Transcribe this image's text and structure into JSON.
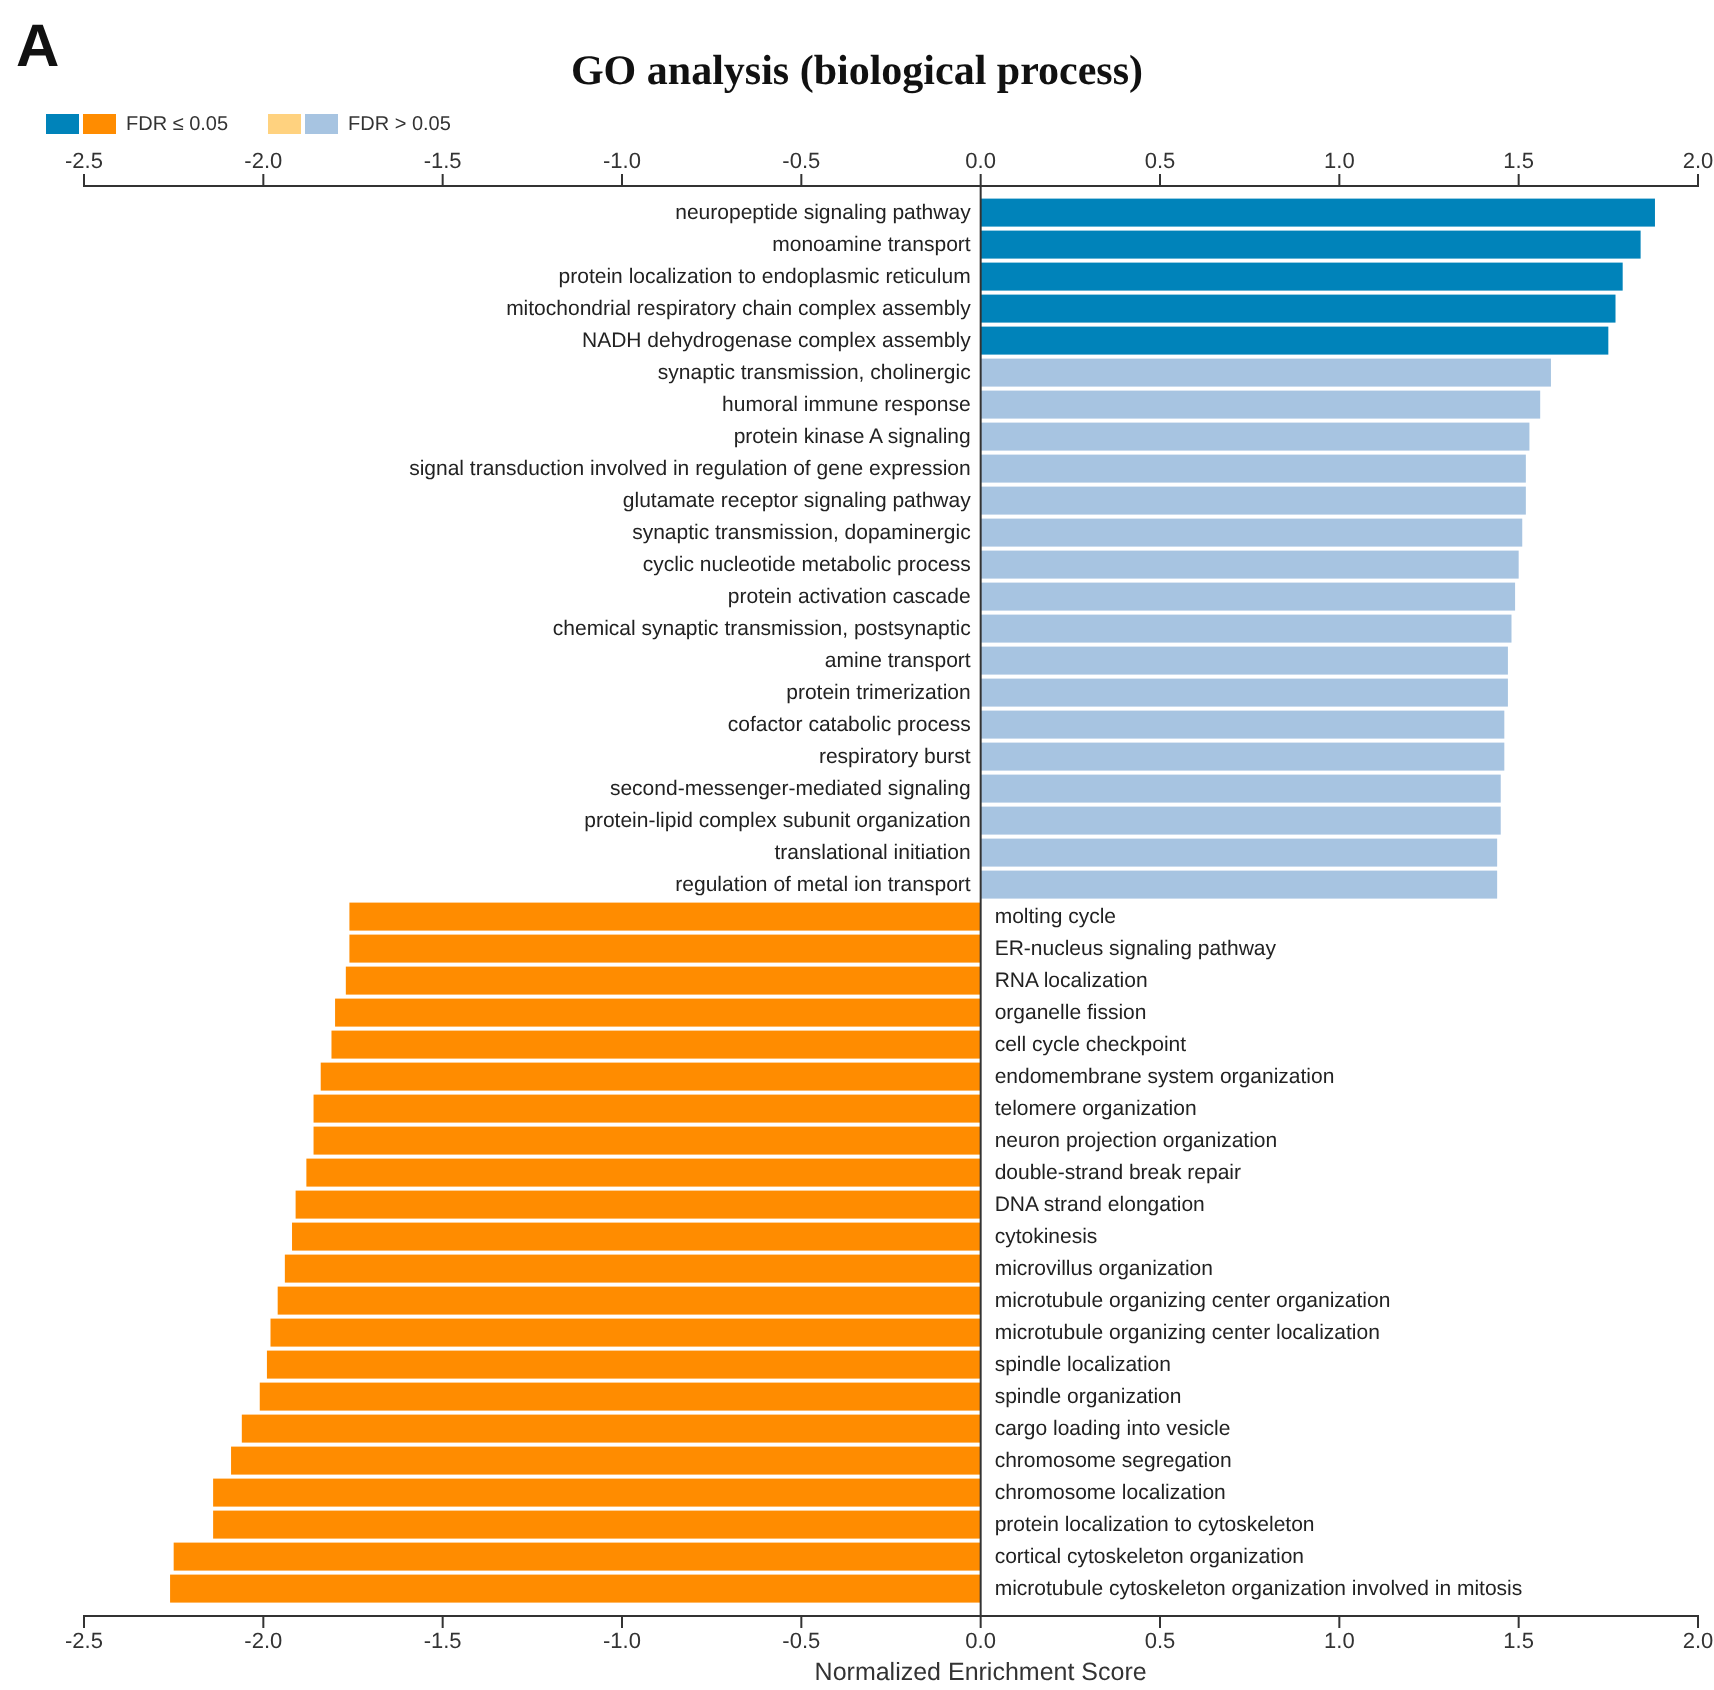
{
  "chart_data": {
    "type": "bar",
    "title": "GO analysis (biological process)",
    "xlabel": "Normalized Enrichment Score",
    "annotations": [
      "A"
    ],
    "orientation": "horizontal",
    "stacked": true,
    "legend": "top left",
    "categories": [
      "neuropeptide signaling pathway",
      "monoamine transport",
      "protein localization to endoplasmic reticulum",
      "mitochondrial respiratory chain complex assembly",
      "NADH dehydrogenase complex assembly",
      "synaptic transmission, cholinergic",
      "humoral immune response",
      "protein kinase A signaling",
      "signal transduction involved in regulation of gene expression",
      "glutamate receptor signaling pathway",
      "synaptic transmission, dopaminergic",
      "cyclic nucleotide metabolic process",
      "protein activation cascade",
      "chemical synaptic transmission, postsynaptic",
      "amine transport",
      "protein trimerization",
      "cofactor catabolic process",
      "respiratory burst",
      "second-messenger-mediated signaling",
      "protein-lipid complex subunit organization",
      "translational initiation",
      "regulation of metal ion transport",
      "molting cycle",
      "ER-nucleus signaling pathway",
      "RNA localization",
      "organelle fission",
      "cell cycle checkpoint",
      "endomembrane system organization",
      "telomere organization",
      "neuron projection organization",
      "double-strand break repair",
      "DNA strand elongation",
      "cytokinesis",
      "microvillus organization",
      "microtubule organizing center organization",
      "microtubule organizing center localization",
      "spindle localization",
      "spindle organization",
      "cargo loading into vesicle",
      "chromosome segregation",
      "chromosome localization",
      "protein localization to cytoskeleton",
      "cortical cytoskeleton organization",
      "microtubule cytoskeleton organization involved in mitosis"
    ],
    "series": [
      {
        "name": "FDR ≤ 0.05",
        "values": [
          1.88,
          1.84,
          1.79,
          1.77,
          1.75,
          null,
          null,
          null,
          null,
          null,
          null,
          null,
          null,
          null,
          null,
          null,
          null,
          null,
          null,
          null,
          null,
          null,
          -1.76,
          -1.76,
          -1.77,
          -1.8,
          -1.81,
          -1.84,
          -1.86,
          -1.86,
          -1.88,
          -1.91,
          -1.92,
          -1.94,
          -1.96,
          -1.98,
          -1.99,
          -2.01,
          -2.06,
          -2.09,
          -2.14,
          -2.14,
          -2.25,
          -2.26
        ],
        "colors": [
          "#0083ba",
          "#0083ba",
          "#0083ba",
          "#0083ba",
          "#0083ba",
          null,
          null,
          null,
          null,
          null,
          null,
          null,
          null,
          null,
          null,
          null,
          null,
          null,
          null,
          null,
          null,
          null,
          "#ff8c00",
          "#ff8c00",
          "#ff8c00",
          "#ff8c00",
          "#ff8c00",
          "#ff8c00",
          "#ff8c00",
          "#ff8c00",
          "#ff8c00",
          "#ff8c00",
          "#ff8c00",
          "#ff8c00",
          "#ff8c00",
          "#ff8c00",
          "#ff8c00",
          "#ff8c00",
          "#ff8c00",
          "#ff8c00",
          "#ff8c00",
          "#ff8c00",
          "#ff8c00",
          "#ff8c00"
        ]
      },
      {
        "name": "FDR > 0.05",
        "values": [
          null,
          null,
          null,
          null,
          null,
          1.59,
          1.56,
          1.53,
          1.52,
          1.52,
          1.51,
          1.5,
          1.49,
          1.48,
          1.47,
          1.47,
          1.46,
          1.46,
          1.45,
          1.45,
          1.44,
          1.44,
          null,
          null,
          null,
          null,
          null,
          null,
          null,
          null,
          null,
          null,
          null,
          null,
          null,
          null,
          null,
          null,
          null,
          null,
          null,
          null,
          null,
          null
        ],
        "colors": [
          null,
          null,
          null,
          null,
          null,
          "#a7c4e1",
          "#a7c4e1",
          "#a7c4e1",
          "#a7c4e1",
          "#a7c4e1",
          "#a7c4e1",
          "#a7c4e1",
          "#a7c4e1",
          "#a7c4e1",
          "#a7c4e1",
          "#a7c4e1",
          "#a7c4e1",
          "#a7c4e1",
          "#a7c4e1",
          "#a7c4e1",
          "#a7c4e1",
          "#a7c4e1",
          "#ffd27f",
          "#ffd27f",
          "#ffd27f",
          "#ffd27f",
          "#ffd27f",
          "#ffd27f",
          "#ffd27f",
          "#ffd27f",
          "#ffd27f",
          "#ffd27f",
          "#ffd27f",
          "#ffd27f",
          "#ffd27f",
          "#ffd27f",
          "#ffd27f",
          "#ffd27f",
          "#ffd27f",
          "#ffd27f",
          "#ffd27f",
          "#ffd27f",
          "#ffd27f",
          "#ffd27f"
        ]
      }
    ],
    "xlim": [
      -2.5,
      2.0
    ],
    "xticks": [
      -2.5,
      {
        "value": -2,
        "label": "-2.0"
      },
      -1.5,
      {
        "value": -1,
        "label": "-1.0"
      },
      -0.5,
      {
        "value": 0,
        "label": "0.0"
      },
      0.5,
      {
        "value": 1,
        "label": "1.0"
      },
      1.5,
      {
        "value": 2,
        "label": "2.0"
      }
    ],
    "x2lim": [
      -2.5,
      2.0
    ],
    "x2ticks": [
      -2.5,
      {
        "value": -2,
        "label": "-2.0"
      },
      -1.5,
      {
        "value": -1,
        "label": "-1.0"
      },
      -0.5,
      {
        "value": 0,
        "label": "0.0"
      },
      0.5,
      {
        "value": 1,
        "label": "1.0"
      },
      1.5,
      {
        "value": 2,
        "label": "2.0"
      }
    ]
  }
}
